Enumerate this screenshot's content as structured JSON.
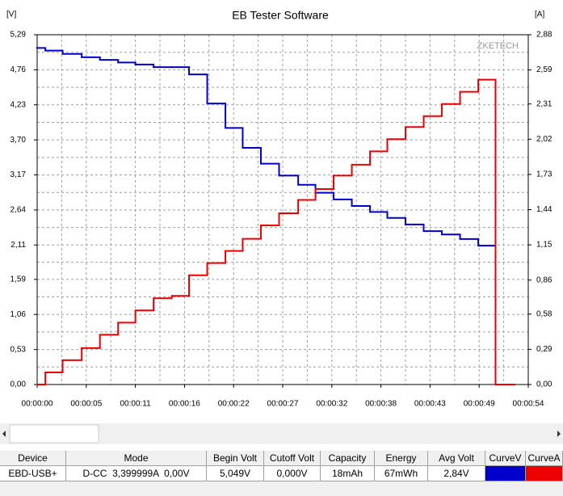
{
  "chart_data": {
    "type": "step",
    "title": "EB Tester Software",
    "y_label": "[V]",
    "y2_label": "[A]",
    "watermark": "ZKETECH",
    "x": [
      0,
      0.9,
      2.8,
      4.9,
      6.9,
      8.9,
      10.8,
      12.8,
      14.8,
      16.7,
      18.7,
      20.7,
      22.6,
      24.6,
      26.6,
      28.7,
      30.6,
      32.6,
      34.6,
      36.6,
      38.5,
      40.5,
      42.5,
      44.5,
      46.5,
      48.5,
      50.4,
      52.5
    ],
    "series": [
      {
        "name": "CurveV",
        "color": "#0000cc",
        "axis": "y",
        "values": [
          5.09,
          5.05,
          5.0,
          4.95,
          4.91,
          4.87,
          4.84,
          4.8,
          4.8,
          4.69,
          4.25,
          3.88,
          3.58,
          3.34,
          3.16,
          3.02,
          2.9,
          2.8,
          2.7,
          2.61,
          2.52,
          2.42,
          2.32,
          2.27,
          2.2,
          2.1,
          null,
          null
        ]
      },
      {
        "name": "CurveA",
        "color": "#ee0000",
        "axis": "y2",
        "values": [
          0,
          0.1,
          0.2,
          0.3,
          0.41,
          0.51,
          0.61,
          0.71,
          0.73,
          0.9,
          1.0,
          1.1,
          1.2,
          1.31,
          1.41,
          1.52,
          1.61,
          1.72,
          1.81,
          1.92,
          2.02,
          2.12,
          2.21,
          2.31,
          2.41,
          2.51,
          0,
          null
        ]
      }
    ],
    "xlim": [
      0,
      54
    ],
    "xticks": [
      {
        "value": 0,
        "label": "00:00:00"
      },
      {
        "value": 5.4,
        "label": "00:00:05"
      },
      {
        "value": 10.8,
        "label": "00:00:11"
      },
      {
        "value": 16.2,
        "label": "00:00:16"
      },
      {
        "value": 21.6,
        "label": "00:00:22"
      },
      {
        "value": 27,
        "label": "00:00:27"
      },
      {
        "value": 32.4,
        "label": "00:00:32"
      },
      {
        "value": 37.8,
        "label": "00:00:38"
      },
      {
        "value": 43.2,
        "label": "00:00:43"
      },
      {
        "value": 48.6,
        "label": "00:00:49"
      },
      {
        "value": 54,
        "label": "00:00:54"
      }
    ],
    "ylim": [
      0,
      5.29
    ],
    "yticks": [
      {
        "value": 0,
        "label": "0,00"
      },
      {
        "value": 0.53,
        "label": "0,53"
      },
      {
        "value": 1.06,
        "label": "1,06"
      },
      {
        "value": 1.59,
        "label": "1,59"
      },
      {
        "value": 2.11,
        "label": "2,11"
      },
      {
        "value": 2.64,
        "label": "2,64"
      },
      {
        "value": 3.17,
        "label": "3,17"
      },
      {
        "value": 3.7,
        "label": "3,70"
      },
      {
        "value": 4.23,
        "label": "4,23"
      },
      {
        "value": 4.76,
        "label": "4,76"
      },
      {
        "value": 5.29,
        "label": "5,29"
      }
    ],
    "y2lim": [
      0,
      2.88
    ],
    "y2ticks": [
      {
        "value": 0,
        "label": "0,00"
      },
      {
        "value": 0.29,
        "label": "0,29"
      },
      {
        "value": 0.58,
        "label": "0,58"
      },
      {
        "value": 0.86,
        "label": "0,86"
      },
      {
        "value": 1.15,
        "label": "1,15"
      },
      {
        "value": 1.44,
        "label": "1,44"
      },
      {
        "value": 1.73,
        "label": "1,73"
      },
      {
        "value": 2.02,
        "label": "2,02"
      },
      {
        "value": 2.31,
        "label": "2,31"
      },
      {
        "value": 2.59,
        "label": "2,59"
      },
      {
        "value": 2.88,
        "label": "2,88"
      }
    ],
    "grid": true
  },
  "table": {
    "header": [
      "Device",
      "Mode",
      "Begin Volt",
      "Cutoff Volt",
      "Capacity",
      "Energy",
      "Avg Volt",
      "CurveV",
      "CurveA"
    ],
    "rows": [
      [
        "EBD-USB+",
        "D-CC  3,399999A  0,00V",
        "5,049V",
        "0,000V",
        "18mAh",
        "67mWh",
        "2,84V"
      ]
    ]
  }
}
